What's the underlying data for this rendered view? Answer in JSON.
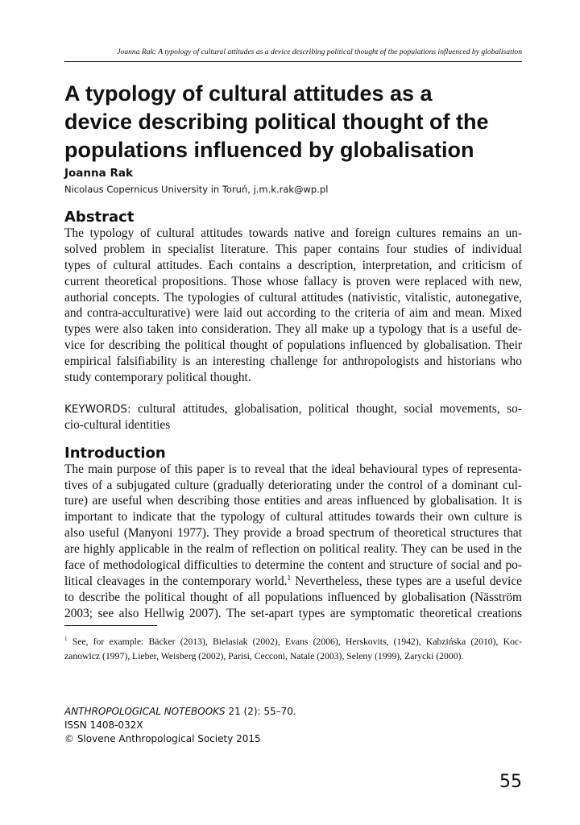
{
  "running_header": "Joanna Rak: A typology of cultural attitudes as a device describing political thought of the populations influenced by globalisation",
  "title_lines": [
    "A typology of cultural attitudes as a",
    "device describing political thought of the",
    "populations influenced by globalisation"
  ],
  "author": "Joanna Rak",
  "affiliation": "Nicolaus Copernicus University in Toruń, j.m.k.rak@wp.pl",
  "abstract": {
    "heading": "Abstract",
    "lines": [
      "The typology of cultural attitudes towards native and foreign cultures remains an un-",
      "solved problem in specialist literature. This paper contains four studies of individual",
      "types of cultural attitudes. Each contains a description, interpretation, and criticism of",
      "current theoretical propositions. Those whose fallacy is proven were replaced with new,",
      "authorial concepts. The typologies of cultural attitudes (nativistic, vitalistic, autonegative,",
      "and contra-acculturative) were laid out according to the criteria of aim and mean. Mixed",
      "types were also taken into consideration. They all make up a typology that is a useful de-",
      "vice for describing the political thought of populations influenced by globalisation. Their",
      "empirical falsifiability is an interesting challenge for anthropologists and historians who",
      "study contemporary political thought."
    ]
  },
  "keywords": {
    "label": "KEYWORDS:",
    "line1": " cultural attitudes, globalisation, political thought, social movements, so-",
    "line2": "cio-cultural identities"
  },
  "introduction": {
    "heading": "Introduction",
    "lines": [
      "The main purpose of this paper is to reveal that the ideal behavioural types of representa-",
      "tives of a subjugated culture (gradually deteriorating under the control of a dominant cul-",
      "ture) are useful when describing those entities and areas influenced by globalisation. It is",
      "important to indicate that the typology of cultural attitudes towards their own culture is",
      "also useful (Manyoni 1977). They provide a broad spectrum of theoretical structures that",
      "are highly applicable in the realm of reflection on political reality. They can be used in the",
      "face of methodological difficulties to determine the content and structure of social and po-",
      "litical cleavages in the contemporary world.",
      "to describe the political thought of all populations influenced by globalisation (Näsström",
      "2003; see also Hellwig 2007). The set-apart types are symptomatic theoretical creations"
    ],
    "line8_sup": "1",
    "line8_rest": " Nevertheless, these types are a useful device"
  },
  "footnote": {
    "marker": "1",
    "line1": " See, for example: Bäcker (2013), Bielasiak (2002), Evans (2006), Herskovits, (1942), Kabzińska (2010), Koc-",
    "line2": "zanowicz (1997), Lieber, Weisberg (2002), Parisi, Cecconi, Natale (2003), Seleny (1999), Zarycki (2000)."
  },
  "journal": {
    "name": "ANTHROPOLOGICAL NOTEBOOKS",
    "issue": " 21 (2): 55–70.",
    "issn": "ISSN 1408-032X",
    "copyright": "© Slovene Anthropological Society 2015"
  },
  "page_number": "55"
}
